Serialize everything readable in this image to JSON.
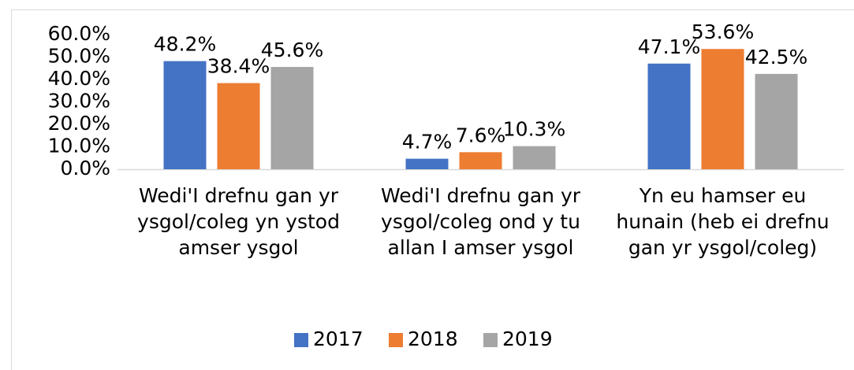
{
  "chart_data": {
    "type": "bar",
    "categories": [
      "Wedi'I drefnu gan yr ysgol/coleg yn ystod amser ysgol",
      "Wedi'I drefnu gan yr ysgol/coleg ond y tu allan I amser ysgol",
      "Yn eu hamser eu hunain (heb ei drefnu gan yr ysgol/coleg)"
    ],
    "series": [
      {
        "name": "2017",
        "color": "#4472c4",
        "values": [
          48.2,
          4.7,
          47.1
        ],
        "value_labels": [
          "48.2%",
          "4.7%",
          "47.1%"
        ]
      },
      {
        "name": "2018",
        "color": "#ed7d31",
        "values": [
          38.4,
          7.6,
          53.6
        ],
        "value_labels": [
          "38.4%",
          "7.6%",
          "53.6%"
        ]
      },
      {
        "name": "2019",
        "color": "#a5a5a5",
        "values": [
          45.6,
          10.3,
          42.5
        ],
        "value_labels": [
          "45.6%",
          "10.3%",
          "42.5%"
        ]
      }
    ],
    "ylim": [
      0,
      60
    ],
    "yticks": [
      {
        "value": 0,
        "label": "0.0%"
      },
      {
        "value": 10,
        "label": "10.0%"
      },
      {
        "value": 20,
        "label": "20.0%"
      },
      {
        "value": 30,
        "label": "30.0%"
      },
      {
        "value": 40,
        "label": "40.0%"
      },
      {
        "value": 50,
        "label": "50.0%"
      },
      {
        "value": 60,
        "label": "60.0%"
      }
    ],
    "grid": false,
    "legend": "bottom"
  }
}
